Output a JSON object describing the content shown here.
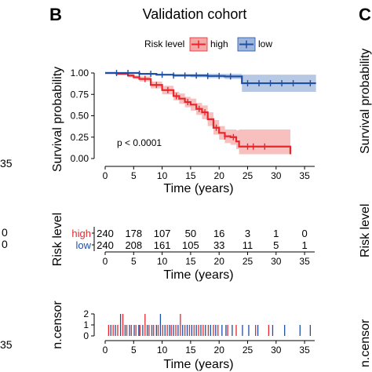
{
  "panel_letters": {
    "b": "B",
    "c": "C"
  },
  "left_fragment": {
    "ticks": [
      "35",
      "0",
      "0",
      "35"
    ]
  },
  "right_fragment": {
    "ylabels": [
      "Survival probability",
      "Risk level",
      "n.censor"
    ]
  },
  "colors": {
    "high": "#e8262b",
    "low": "#1f4fa3",
    "high_band": "#f4a9a8",
    "low_band": "#9fb6dc",
    "axis": "#000000"
  },
  "chart_data": [
    {
      "type": "line",
      "panel": "km",
      "title": "Validation cohort",
      "legend": {
        "title": "Risk level",
        "entries": [
          "high",
          "low"
        ],
        "placement": "top"
      },
      "xlabel": "Time (years)",
      "ylabel": "Survival probability",
      "xlim": [
        -2,
        37
      ],
      "ylim": [
        0,
        1
      ],
      "x_ticks": [
        "0",
        "5",
        "10",
        "15",
        "20",
        "25",
        "30",
        "35"
      ],
      "y_ticks": [
        "0.00",
        "0.25",
        "0.50",
        "0.75",
        "1.00"
      ],
      "annotation": "p < 0.0001",
      "grid": false,
      "series": [
        {
          "name": "high",
          "x": [
            0,
            2,
            4,
            5,
            6,
            8,
            10,
            12,
            13,
            14,
            15,
            16,
            17,
            18,
            19,
            20,
            21,
            22,
            23,
            23.5,
            32.5,
            32.5
          ],
          "y": [
            1.0,
            0.99,
            0.97,
            0.95,
            0.93,
            0.86,
            0.8,
            0.73,
            0.7,
            0.66,
            0.63,
            0.58,
            0.54,
            0.46,
            0.36,
            0.3,
            0.26,
            0.25,
            0.2,
            0.14,
            0.14,
            0.05
          ],
          "ci_low": [
            1.0,
            0.98,
            0.95,
            0.93,
            0.9,
            0.82,
            0.75,
            0.68,
            0.64,
            0.6,
            0.56,
            0.51,
            0.46,
            0.38,
            0.28,
            0.22,
            0.18,
            0.16,
            0.11,
            0.05,
            0.05,
            0.0
          ],
          "ci_high": [
            1.0,
            1.0,
            0.99,
            0.97,
            0.96,
            0.9,
            0.85,
            0.78,
            0.76,
            0.72,
            0.7,
            0.65,
            0.62,
            0.54,
            0.45,
            0.38,
            0.34,
            0.34,
            0.33,
            0.34,
            0.34,
            0.34
          ],
          "censor_x": [
            7,
            9,
            11,
            12.5,
            14.5,
            16.5,
            17.5,
            19.5,
            21,
            22.5,
            25,
            26,
            28
          ]
        },
        {
          "name": "low",
          "x": [
            0,
            3,
            6,
            9,
            12,
            15,
            18,
            21,
            24,
            24,
            37
          ],
          "y": [
            1.0,
            1.0,
            0.99,
            0.98,
            0.97,
            0.97,
            0.965,
            0.96,
            0.96,
            0.88,
            0.88
          ],
          "ci_low": [
            1.0,
            1.0,
            0.98,
            0.97,
            0.96,
            0.95,
            0.94,
            0.93,
            0.92,
            0.78,
            0.78
          ],
          "ci_high": [
            1.0,
            1.0,
            1.0,
            0.99,
            0.99,
            0.99,
            0.99,
            0.99,
            0.99,
            0.98,
            0.98
          ],
          "censor_x": [
            2,
            4,
            6,
            8,
            10,
            12,
            14,
            16,
            18,
            20,
            22,
            25,
            27,
            29,
            31,
            33,
            36
          ]
        }
      ]
    },
    {
      "type": "table",
      "panel": "risk",
      "xlabel": "Time (years)",
      "ylabel": "Risk level",
      "columns": [
        0,
        5,
        10,
        15,
        20,
        25,
        30,
        35
      ],
      "rows": [
        {
          "name": "high",
          "values": [
            "240",
            "178",
            "107",
            "50",
            "16",
            "3",
            "1",
            "0"
          ]
        },
        {
          "name": "low",
          "values": [
            "240",
            "208",
            "161",
            "105",
            "33",
            "11",
            "5",
            "1"
          ]
        }
      ]
    },
    {
      "type": "bar",
      "panel": "censor",
      "xlabel": "Time (years)",
      "ylabel": "n.censor",
      "y_ticks": [
        "0",
        "1",
        "2"
      ],
      "ylim": [
        0,
        2
      ],
      "x_ticks": [
        "0",
        "5",
        "10",
        "15",
        "20",
        "25",
        "30",
        "35"
      ],
      "series": [
        {
          "name": "high",
          "x": [
            0.6,
            1.4,
            2.2,
            3.1,
            3.8,
            4.6,
            5.4,
            6.1,
            7.0,
            7.7,
            8.5,
            9.3,
            10.1,
            10.9,
            11.6,
            12.4,
            13.2,
            14.0,
            14.8,
            15.6,
            16.4,
            17.2,
            18.1,
            19.0,
            19.8,
            21.5,
            23.0,
            26.4,
            28.7
          ],
          "values": [
            1,
            1,
            1,
            2,
            1,
            1,
            1,
            1,
            2,
            1,
            1,
            1,
            1,
            1,
            1,
            1,
            2,
            1,
            1,
            1,
            1,
            1,
            1,
            1,
            1,
            1,
            1,
            1,
            1
          ]
        },
        {
          "name": "low",
          "x": [
            1.0,
            1.8,
            2.7,
            3.5,
            4.3,
            5.1,
            5.9,
            6.6,
            7.4,
            8.2,
            9.0,
            9.7,
            10.5,
            11.3,
            12.0,
            12.8,
            13.6,
            14.4,
            15.2,
            16.0,
            16.8,
            17.6,
            18.5,
            19.4,
            20.5,
            21.2,
            22.3,
            24.1,
            25.2,
            26.8,
            29.4,
            31.5,
            34.2,
            36.0
          ],
          "values": [
            1,
            1,
            2,
            1,
            1,
            1,
            1,
            1,
            1,
            1,
            1,
            2,
            1,
            1,
            1,
            1,
            1,
            1,
            1,
            1,
            1,
            1,
            1,
            1,
            1,
            1,
            1,
            1,
            1,
            1,
            1,
            1,
            1,
            1
          ]
        }
      ]
    }
  ]
}
